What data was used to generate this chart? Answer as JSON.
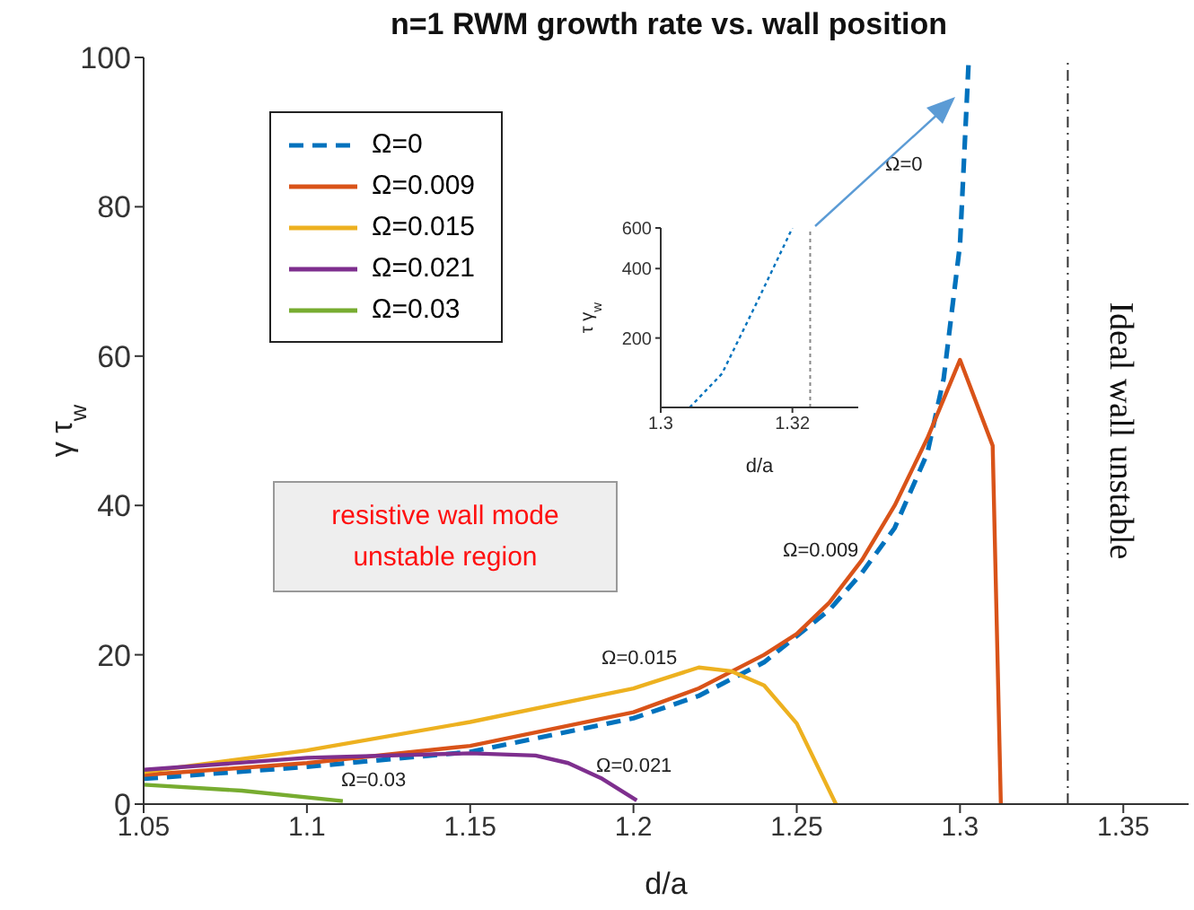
{
  "chart_data": [
    {
      "type": "line",
      "title": "n=1 RWM growth rate vs. wall position",
      "xlabel": "d/a",
      "ylabel": "γ τ$_{w}$",
      "xlim": [
        1.05,
        1.37
      ],
      "xticks": [
        {
          "value": 1.05,
          "label": "1.05"
        },
        {
          "value": 1.1,
          "label": "1.1"
        },
        {
          "value": 1.15,
          "label": "1.15"
        },
        {
          "value": 1.2,
          "label": "1.2"
        },
        {
          "value": 1.25,
          "label": "1.25"
        },
        {
          "value": 1.3,
          "label": "1.3"
        },
        {
          "value": 1.35,
          "label": "1.35"
        }
      ],
      "ylim": [
        0,
        100
      ],
      "yticks": [
        0,
        20,
        40,
        60,
        80,
        100
      ],
      "legend": "top left",
      "series": [
        {
          "name": "Ω=0",
          "color": "#0072bd",
          "line_style": "dashed",
          "x": [
            1.05,
            1.1,
            1.15,
            1.2,
            1.22,
            1.24,
            1.26,
            1.27,
            1.28,
            1.29,
            1.295,
            1.3,
            1.3027
          ],
          "values": [
            3.4,
            5,
            7,
            11.5,
            14.5,
            19,
            26,
            31,
            37,
            47,
            57,
            75,
            100
          ]
        },
        {
          "name": "Ω=0.009",
          "color": "#d95319",
          "line_style": "solid",
          "x": [
            1.05,
            1.1,
            1.15,
            1.2,
            1.22,
            1.24,
            1.25,
            1.26,
            1.27,
            1.28,
            1.29,
            1.3,
            1.31,
            1.3125
          ],
          "values": [
            3.9,
            5.5,
            7.8,
            12.3,
            15.5,
            20,
            22.8,
            27,
            32.7,
            40,
            49,
            59.5,
            48,
            0
          ]
        },
        {
          "name": "Ω=0.015",
          "color": "#edb120",
          "line_style": "solid",
          "x": [
            1.05,
            1.1,
            1.15,
            1.2,
            1.22,
            1.23,
            1.24,
            1.25,
            1.262
          ],
          "values": [
            4.3,
            7.2,
            11,
            15.5,
            18.3,
            17.8,
            15.9,
            10.8,
            0
          ]
        },
        {
          "name": "Ω=0.021",
          "color": "#7e2f8e",
          "line_style": "solid",
          "x": [
            1.05,
            1.1,
            1.15,
            1.17,
            1.18,
            1.19,
            1.201
          ],
          "values": [
            4.6,
            6.2,
            6.8,
            6.5,
            5.5,
            3.5,
            0.5
          ]
        },
        {
          "name": "Ω=0.03",
          "color": "#77ac30",
          "line_style": "solid",
          "x": [
            1.05,
            1.08,
            1.111
          ],
          "values": [
            2.6,
            1.8,
            0.4
          ]
        }
      ],
      "ref_lines": [
        {
          "axis": "x",
          "value": 1.333,
          "label": "Ideal wall unstable",
          "color": "#333333",
          "line_style": "dashdot"
        }
      ],
      "annotations": [
        "Ω=0",
        "Ω=0.009",
        "Ω=0.015",
        "Ω=0.021",
        "Ω=0.03",
        "resistive wall mode unstable region"
      ]
    },
    {
      "type": "line",
      "xlabel": "d/a",
      "ylabel": "τ γ$_{w}$",
      "log": "y",
      "xlim": [
        1.3,
        1.33
      ],
      "xticks": [
        {
          "value": 1.3,
          "label": "1.3"
        },
        {
          "value": 1.32,
          "label": "1.32"
        }
      ],
      "ylim": [
        100,
        600
      ],
      "yticks": [
        200,
        400,
        600
      ],
      "series": [
        {
          "color": "#0072bd",
          "line_style": "dotted",
          "x": [
            1.3044,
            1.3093,
            1.3147,
            1.32
          ],
          "values": [
            100,
            140,
            289,
            600
          ]
        }
      ],
      "ref_lines": [
        {
          "axis": "x",
          "value": 1.3227,
          "color": "#888888",
          "line_style": "dotted"
        }
      ]
    }
  ]
}
